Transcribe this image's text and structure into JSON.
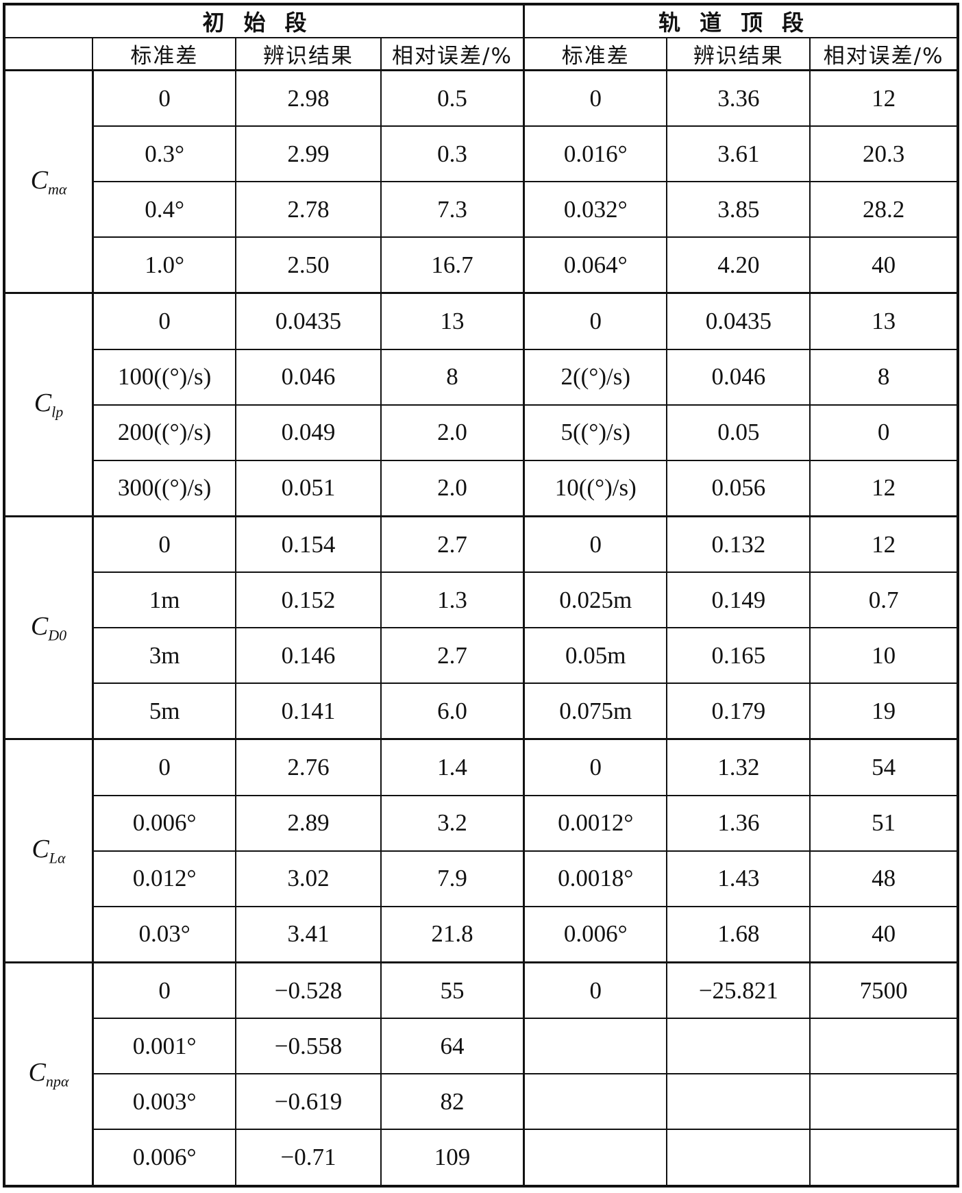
{
  "header": {
    "section_initial": "初始段",
    "section_apogee": "轨道顶段",
    "col_std": "标准差",
    "col_result": "辨识结果",
    "col_error": "相对误差/%"
  },
  "groups": [
    {
      "param": "C",
      "sub": "mα",
      "rows": [
        [
          "0",
          "2.98",
          "0.5",
          "0",
          "3.36",
          "12"
        ],
        [
          "0.3°",
          "2.99",
          "0.3",
          "0.016°",
          "3.61",
          "20.3"
        ],
        [
          "0.4°",
          "2.78",
          "7.3",
          "0.032°",
          "3.85",
          "28.2"
        ],
        [
          "1.0°",
          "2.50",
          "16.7",
          "0.064°",
          "4.20",
          "40"
        ]
      ]
    },
    {
      "param": "C",
      "sub": "lp",
      "rows": [
        [
          "0",
          "0.0435",
          "13",
          "0",
          "0.0435",
          "13"
        ],
        [
          "100((°)/s)",
          "0.046",
          "8",
          "2((°)/s)",
          "0.046",
          "8"
        ],
        [
          "200((°)/s)",
          "0.049",
          "2.0",
          "5((°)/s)",
          "0.05",
          "0"
        ],
        [
          "300((°)/s)",
          "0.051",
          "2.0",
          "10((°)/s)",
          "0.056",
          "12"
        ]
      ]
    },
    {
      "param": "C",
      "sub": "D0",
      "rows": [
        [
          "0",
          "0.154",
          "2.7",
          "0",
          "0.132",
          "12"
        ],
        [
          "1m",
          "0.152",
          "1.3",
          "0.025m",
          "0.149",
          "0.7"
        ],
        [
          "3m",
          "0.146",
          "2.7",
          "0.05m",
          "0.165",
          "10"
        ],
        [
          "5m",
          "0.141",
          "6.0",
          "0.075m",
          "0.179",
          "19"
        ]
      ]
    },
    {
      "param": "C",
      "sub": "Lα",
      "rows": [
        [
          "0",
          "2.76",
          "1.4",
          "0",
          "1.32",
          "54"
        ],
        [
          "0.006°",
          "2.89",
          "3.2",
          "0.0012°",
          "1.36",
          "51"
        ],
        [
          "0.012°",
          "3.02",
          "7.9",
          "0.0018°",
          "1.43",
          "48"
        ],
        [
          "0.03°",
          "3.41",
          "21.8",
          "0.006°",
          "1.68",
          "40"
        ]
      ]
    },
    {
      "param": "C",
      "sub": "npα",
      "rows": [
        [
          "0",
          "−0.528",
          "55",
          "0",
          "−25.821",
          "7500"
        ],
        [
          "0.001°",
          "−0.558",
          "64",
          "",
          "",
          ""
        ],
        [
          "0.003°",
          "−0.619",
          "82",
          "",
          "",
          ""
        ],
        [
          "0.006°",
          "−0.71",
          "109",
          "",
          "",
          ""
        ]
      ]
    }
  ]
}
